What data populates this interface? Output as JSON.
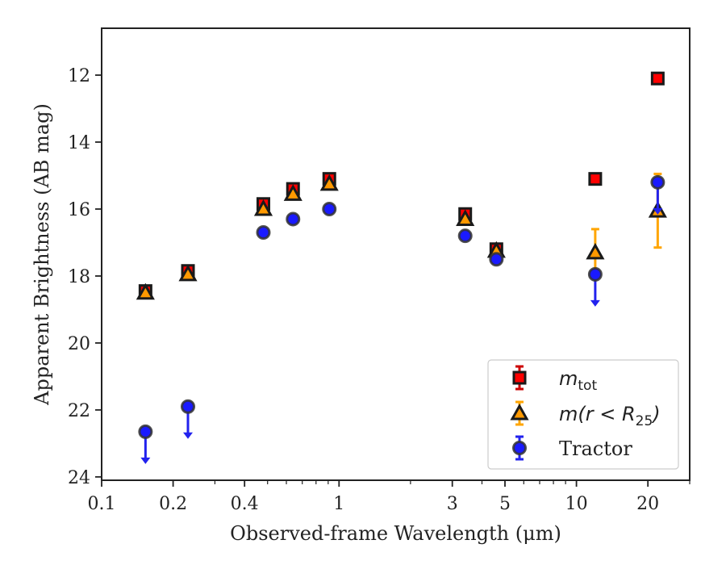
{
  "chart_data": {
    "type": "scatter",
    "xlabel": "Observed-frame Wavelength (μm)",
    "ylabel": "Apparent Brightness (AB mag)",
    "xscale": "log",
    "xlim": [
      0.1,
      30
    ],
    "ylim": [
      24.1,
      10.6
    ],
    "y_inverted": true,
    "grid": false,
    "legend_position": "bottom-right",
    "x_ticks": [
      {
        "value": 0.1,
        "label": "0.1"
      },
      {
        "value": 0.2,
        "label": "0.2"
      },
      {
        "value": 0.4,
        "label": "0.4"
      },
      {
        "value": 1,
        "label": "1"
      },
      {
        "value": 3,
        "label": "3"
      },
      {
        "value": 5,
        "label": "5"
      },
      {
        "value": 10,
        "label": "10"
      },
      {
        "value": 20,
        "label": "20"
      }
    ],
    "y_ticks": [
      {
        "value": 12,
        "label": "12"
      },
      {
        "value": 14,
        "label": "14"
      },
      {
        "value": 16,
        "label": "16"
      },
      {
        "value": 18,
        "label": "18"
      },
      {
        "value": 20,
        "label": "20"
      },
      {
        "value": 22,
        "label": "22"
      },
      {
        "value": 24,
        "label": "24"
      }
    ],
    "series": [
      {
        "name": "m_tot",
        "marker": "square",
        "color": "#ff0000",
        "edge": "#1a1a1a",
        "error_color": "#cc0000",
        "points": [
          {
            "x": 0.153,
            "y": 18.45,
            "err": 0.12
          },
          {
            "x": 0.231,
            "y": 17.85,
            "err": 0.1
          },
          {
            "x": 0.48,
            "y": 15.85,
            "err": 0.08
          },
          {
            "x": 0.64,
            "y": 15.4,
            "err": 0.08
          },
          {
            "x": 0.91,
            "y": 15.1,
            "err": 0.08
          },
          {
            "x": 3.4,
            "y": 16.15,
            "err": 0.08
          },
          {
            "x": 4.6,
            "y": 17.2,
            "err": 0.08
          },
          {
            "x": 12.0,
            "y": 15.1,
            "err": 0.05
          },
          {
            "x": 22.0,
            "y": 12.1,
            "err": 0.05
          }
        ]
      },
      {
        "name": "m(r < R_25)",
        "marker": "triangle",
        "color": "#ff9900",
        "edge": "#1a1a1a",
        "error_color": "#ffa500",
        "points": [
          {
            "x": 0.153,
            "y": 18.5,
            "err": 0.05
          },
          {
            "x": 0.231,
            "y": 17.95,
            "err": 0.05
          },
          {
            "x": 0.48,
            "y": 16.0,
            "err": 0.05
          },
          {
            "x": 0.64,
            "y": 15.55,
            "err": 0.05
          },
          {
            "x": 0.91,
            "y": 15.25,
            "err": 0.05
          },
          {
            "x": 3.4,
            "y": 16.3,
            "err": 0.05
          },
          {
            "x": 4.6,
            "y": 17.25,
            "err": 0.05
          },
          {
            "x": 12.0,
            "y": 17.3,
            "err": 0.7
          },
          {
            "x": 22.0,
            "y": 16.05,
            "err": 1.1
          }
        ]
      },
      {
        "name": "Tractor",
        "marker": "circle",
        "color": "#1a1aff",
        "edge": "#333333",
        "error_color": "#2222ee",
        "points": [
          {
            "x": 0.153,
            "y": 22.65,
            "err": 0,
            "upper_limit": true
          },
          {
            "x": 0.231,
            "y": 21.9,
            "err": 0,
            "upper_limit": true
          },
          {
            "x": 0.48,
            "y": 16.7,
            "err": 0.05
          },
          {
            "x": 0.64,
            "y": 16.3,
            "err": 0.05
          },
          {
            "x": 0.91,
            "y": 16.0,
            "err": 0.05
          },
          {
            "x": 3.4,
            "y": 16.8,
            "err": 0.05
          },
          {
            "x": 4.6,
            "y": 17.5,
            "err": 0.05
          },
          {
            "x": 12.0,
            "y": 17.95,
            "err": 0,
            "upper_limit": true
          },
          {
            "x": 22.0,
            "y": 15.2,
            "err": 0,
            "upper_limit": true
          }
        ]
      }
    ],
    "legend": [
      {
        "series": "m_tot",
        "label_main": "m",
        "label_sub": "tot",
        "label_tail": ""
      },
      {
        "series": "m(r < R_25)",
        "label_main": "m(r < R",
        "label_sub": "25",
        "label_tail": ")"
      },
      {
        "series": "Tractor",
        "label_main": "Tractor",
        "label_sub": "",
        "label_tail": ""
      }
    ]
  }
}
